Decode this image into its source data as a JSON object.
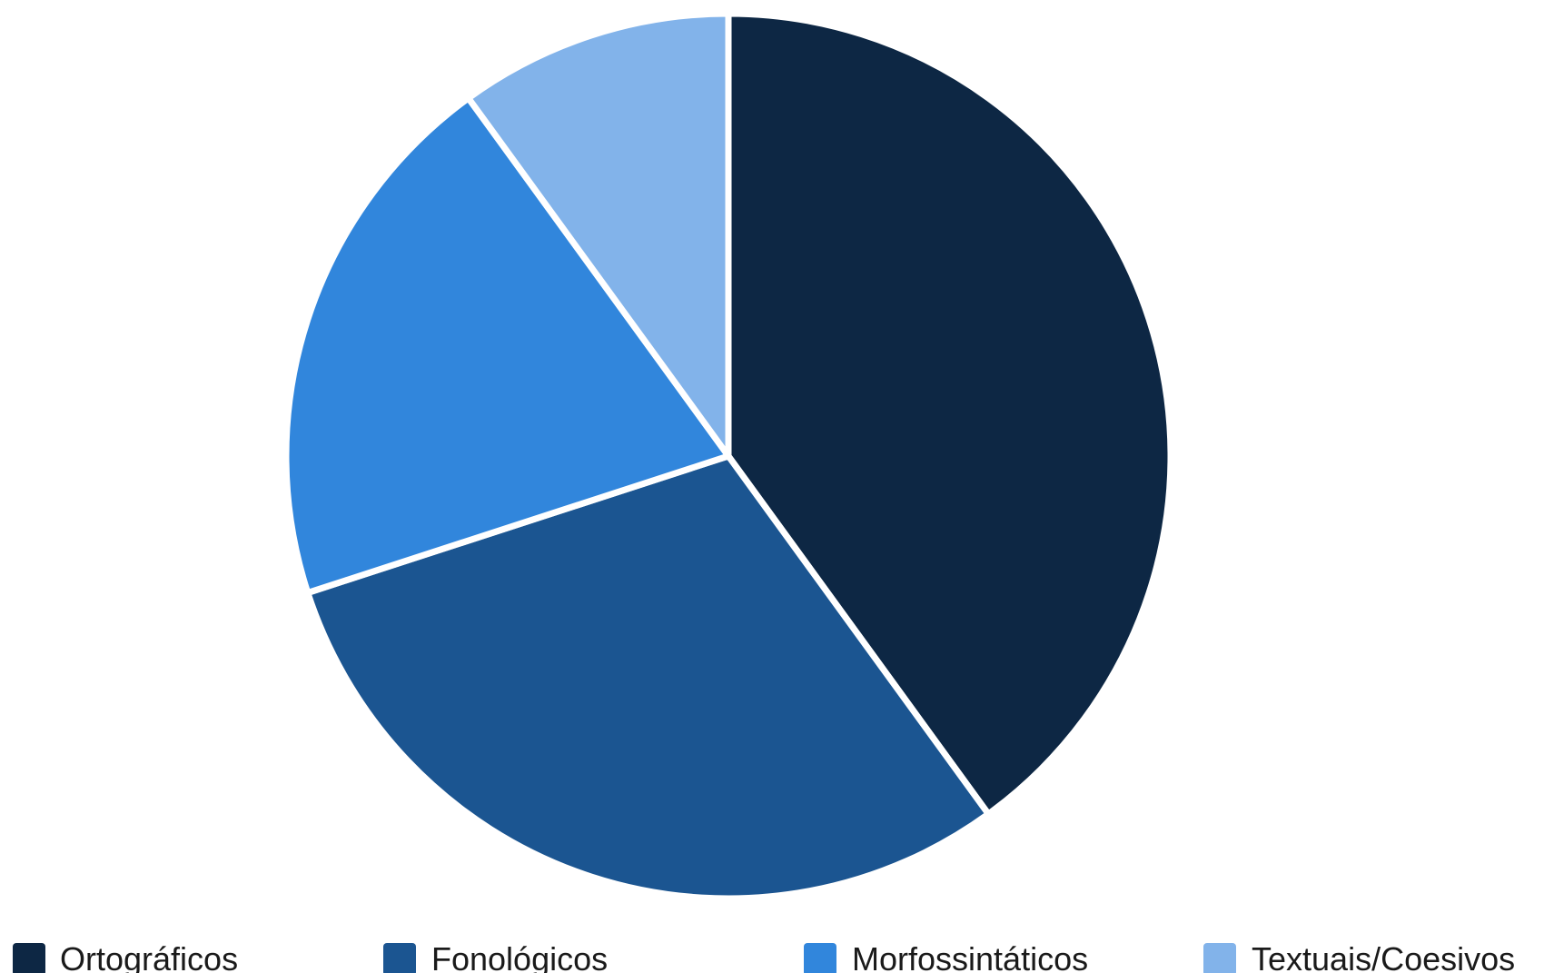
{
  "chart_data": {
    "type": "pie",
    "title": "",
    "categories": [
      "Ortográficos",
      "Fonológicos",
      "Morfossintáticos",
      "Textuais/Coesivos"
    ],
    "values": [
      40,
      30,
      20,
      10
    ],
    "colors": [
      "#0d2744",
      "#1b5591",
      "#3186dc",
      "#82b3ea"
    ],
    "start_angle": "12 o'clock",
    "direction": "clockwise",
    "legend": {
      "position": "bottom",
      "items": [
        {
          "label": "Ortográficos",
          "color": "#0d2744"
        },
        {
          "label": "Fonológicos",
          "color": "#1b5591"
        },
        {
          "label": "Morfossintáticos",
          "color": "#3186dc"
        },
        {
          "label": "Textuais/Coesivos",
          "color": "#82b3ea"
        }
      ]
    }
  }
}
